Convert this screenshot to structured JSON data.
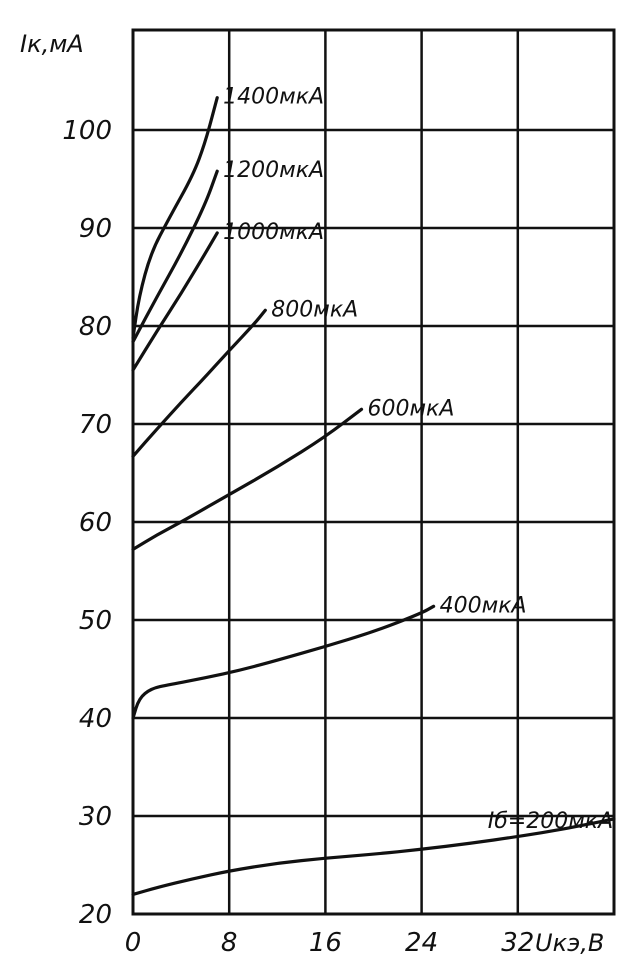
{
  "chart_data": {
    "type": "line",
    "title": "",
    "ylabel": "Iк,мА",
    "xlabel": "Uкэ,В",
    "xlim": [
      0,
      40
    ],
    "ylim": [
      20,
      100
    ],
    "x_ticks": [
      "0",
      "8",
      "16",
      "24",
      "32"
    ],
    "y_ticks": [
      "20",
      "30",
      "40",
      "50",
      "60",
      "70",
      "80",
      "90",
      "100"
    ],
    "grid": true,
    "series": [
      {
        "name": "Iб=200мкА",
        "label": "Iб=200мкА",
        "points": [
          [
            0,
            22
          ],
          [
            2,
            22.7
          ],
          [
            5,
            23.6
          ],
          [
            8,
            24.4
          ],
          [
            12,
            25.2
          ],
          [
            16,
            25.7
          ],
          [
            20,
            26.1
          ],
          [
            24,
            26.6
          ],
          [
            28,
            27.2
          ],
          [
            32,
            27.9
          ],
          [
            36,
            28.7
          ],
          [
            40,
            29.7
          ]
        ]
      },
      {
        "name": "400мкА",
        "label": "400мкА",
        "points": [
          [
            0,
            40
          ],
          [
            0.5,
            42
          ],
          [
            1.5,
            43
          ],
          [
            3,
            43.4
          ],
          [
            6,
            44.1
          ],
          [
            9,
            44.9
          ],
          [
            12,
            45.9
          ],
          [
            16,
            47.3
          ],
          [
            20,
            48.8
          ],
          [
            24,
            50.7
          ],
          [
            25,
            51.4
          ]
        ]
      },
      {
        "name": "600мкА",
        "label": "600мкА",
        "points": [
          [
            0,
            57.2
          ],
          [
            2,
            58.7
          ],
          [
            4,
            60
          ],
          [
            8,
            62.8
          ],
          [
            12,
            65.6
          ],
          [
            16,
            68.7
          ],
          [
            19,
            71.5
          ]
        ]
      },
      {
        "name": "800мкА",
        "label": "800мкА",
        "points": [
          [
            0,
            66.7
          ],
          [
            2,
            69.5
          ],
          [
            4,
            72.2
          ],
          [
            6,
            74.8
          ],
          [
            8,
            77.5
          ],
          [
            10,
            80.1
          ],
          [
            11,
            81.6
          ]
        ]
      },
      {
        "name": "1000мкА",
        "label": "1000мкА",
        "points": [
          [
            0,
            75.5
          ],
          [
            2,
            79.5
          ],
          [
            4,
            83.3
          ],
          [
            6,
            87.4
          ],
          [
            7,
            89.5
          ]
        ]
      },
      {
        "name": "1200мкА",
        "label": "1200мкА",
        "points": [
          [
            0,
            78.4
          ],
          [
            2,
            83
          ],
          [
            4,
            87.4
          ],
          [
            6,
            92.4
          ],
          [
            7,
            95.8
          ]
        ]
      },
      {
        "name": "1400мкА",
        "label": "1400мкА",
        "points": [
          [
            0,
            78.8
          ],
          [
            0.5,
            83
          ],
          [
            1.5,
            87.5
          ],
          [
            3,
            91
          ],
          [
            5,
            95.4
          ],
          [
            6,
            98.7
          ],
          [
            7,
            103.3
          ]
        ]
      }
    ]
  }
}
